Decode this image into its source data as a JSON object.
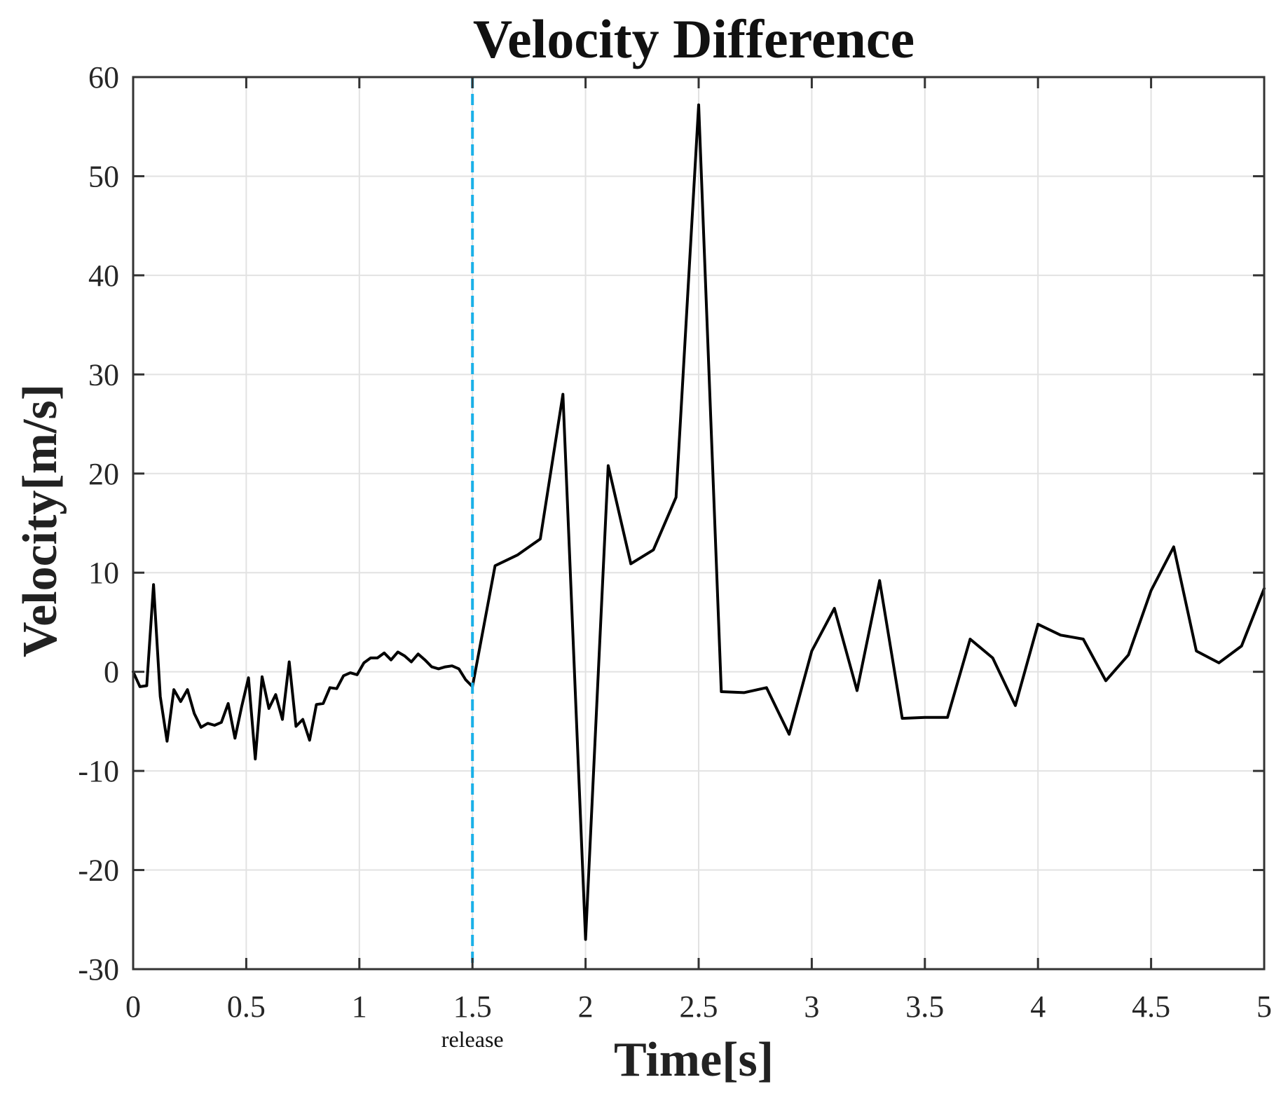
{
  "chart_data": {
    "type": "line",
    "title": "Velocity Difference",
    "xlabel": "Time[s]",
    "ylabel": "Velocity[m/s]",
    "xlim": [
      0,
      5
    ],
    "ylim": [
      -30,
      60
    ],
    "grid": true,
    "x_ticks": [
      0,
      0.5,
      1,
      1.5,
      2,
      2.5,
      3,
      3.5,
      4,
      4.5,
      5
    ],
    "x_tick_labels": [
      "0",
      "0.5",
      "1",
      "1.5",
      "2",
      "2.5",
      "3",
      "3.5",
      "4",
      "4.5",
      "5"
    ],
    "y_ticks": [
      -30,
      -20,
      -10,
      0,
      10,
      20,
      30,
      40,
      50,
      60
    ],
    "y_tick_labels": [
      "-30",
      "-20",
      "-10",
      "0",
      "10",
      "20",
      "30",
      "40",
      "50",
      "60"
    ],
    "annotations": [
      {
        "text": "release",
        "x": 1.5,
        "style": "dashed-vertical-line",
        "color": "#1ab0e8"
      }
    ],
    "series": [
      {
        "name": "Velocity Difference",
        "color": "#000000",
        "x": [
          0,
          0.03,
          0.06,
          0.09,
          0.12,
          0.15,
          0.18,
          0.21,
          0.24,
          0.27,
          0.3,
          0.33,
          0.36,
          0.39,
          0.42,
          0.45,
          0.48,
          0.51,
          0.54,
          0.57,
          0.6,
          0.63,
          0.66,
          0.69,
          0.72,
          0.75,
          0.78,
          0.81,
          0.84,
          0.87,
          0.9,
          0.93,
          0.96,
          0.99,
          1.02,
          1.05,
          1.08,
          1.11,
          1.14,
          1.17,
          1.2,
          1.23,
          1.26,
          1.29,
          1.32,
          1.35,
          1.38,
          1.41,
          1.44,
          1.47,
          1.5,
          1.6,
          1.7,
          1.8,
          1.9,
          2.0,
          2.1,
          2.2,
          2.3,
          2.4,
          2.5,
          2.6,
          2.7,
          2.8,
          2.9,
          3.0,
          3.1,
          3.2,
          3.3,
          3.4,
          3.5,
          3.6,
          3.7,
          3.8,
          3.9,
          4.0,
          4.1,
          4.2,
          4.3,
          4.4,
          4.5,
          4.6,
          4.7,
          4.8,
          4.9,
          5.0
        ],
        "y": [
          0,
          -1.5,
          -1.4,
          8.8,
          -2.5,
          -7.0,
          -1.8,
          -3.0,
          -1.8,
          -4.2,
          -5.6,
          -5.2,
          -5.4,
          -5.1,
          -3.2,
          -6.7,
          -3.5,
          -0.6,
          -8.8,
          -0.5,
          -3.7,
          -2.3,
          -4.8,
          1.0,
          -5.5,
          -4.8,
          -6.9,
          -3.3,
          -3.2,
          -1.6,
          -1.7,
          -0.4,
          -0.1,
          -0.3,
          0.9,
          1.4,
          1.4,
          1.9,
          1.2,
          2.0,
          1.6,
          1.0,
          1.8,
          1.2,
          0.5,
          0.3,
          0.5,
          0.6,
          0.3,
          -0.8,
          -1.5,
          10.7,
          11.8,
          13.4,
          28.0,
          -27.0,
          20.8,
          10.9,
          12.3,
          17.6,
          57.2,
          -2.0,
          -2.1,
          -1.6,
          -6.3,
          2.1,
          6.4,
          -1.9,
          9.2,
          -4.7,
          -4.6,
          -4.6,
          3.3,
          1.4,
          -3.4,
          4.8,
          3.7,
          3.3,
          -0.9,
          1.7,
          8.2,
          12.6,
          2.1,
          0.9,
          2.6,
          8.4
        ]
      }
    ]
  }
}
